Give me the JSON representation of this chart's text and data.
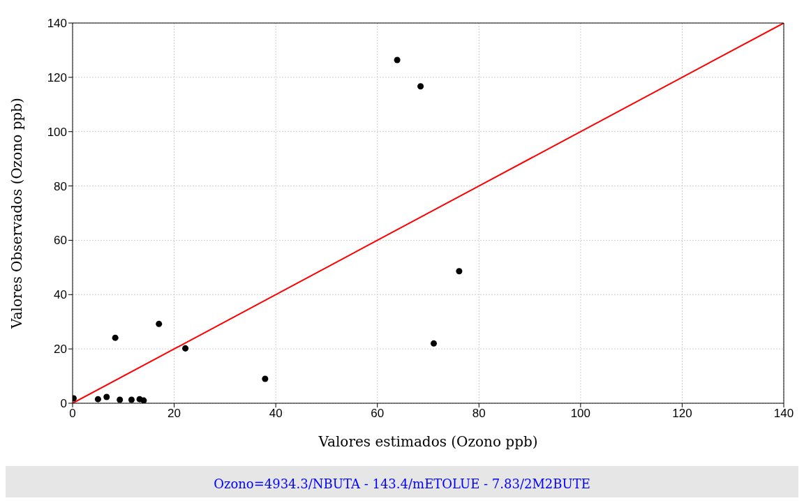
{
  "chart_data": {
    "type": "scatter",
    "xlabel": "Valores estimados (Ozono ppb)",
    "ylabel": "Valores Observados (Ozono ppb)",
    "annotations": [
      "Ozono=4934.3/NBUTA - 143.4/mETOLUE - 7.83/2M2BUTE"
    ],
    "xlim": [
      0,
      140
    ],
    "xticks": [
      0,
      20,
      40,
      60,
      80,
      100,
      120,
      140
    ],
    "ylim": [
      0,
      140
    ],
    "yticks": [
      0,
      20,
      40,
      60,
      80,
      100,
      120,
      140
    ],
    "grid": true,
    "series": [
      {
        "color": "#000000",
        "marker": "circle",
        "x": [
          0.2,
          5.0,
          6.7,
          9.3,
          11.6,
          13.2,
          14.0,
          8.4,
          17.0,
          22.2,
          37.9,
          63.9,
          68.5,
          71.1,
          76.1
        ],
        "values": [
          1.8,
          1.5,
          2.3,
          1.3,
          1.3,
          1.5,
          1.0,
          24.1,
          29.2,
          20.2,
          9.0,
          126.4,
          116.7,
          22.0,
          48.6
        ]
      },
      {
        "type": "line",
        "color": "#ff0000",
        "marker": "none",
        "x": [
          0,
          140
        ],
        "values": [
          0,
          140
        ]
      }
    ]
  }
}
